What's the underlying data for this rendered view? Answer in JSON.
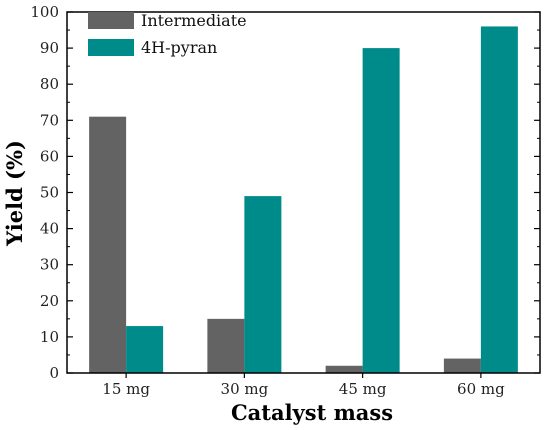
{
  "chart_data": {
    "type": "bar",
    "title": "",
    "xlabel": "Catalyst mass",
    "ylabel": "Yield (%)",
    "ylim": [
      0,
      100
    ],
    "yticks": [
      0,
      10,
      20,
      30,
      40,
      50,
      60,
      70,
      80,
      90,
      100
    ],
    "categories": [
      "15 mg",
      "30 mg",
      "45 mg",
      "60 mg"
    ],
    "series": [
      {
        "name": "Intermediate",
        "color": "#636363",
        "values": [
          71,
          15,
          2,
          4
        ]
      },
      {
        "name": "4H-pyran",
        "color": "#008b8b",
        "values": [
          13,
          49,
          90,
          96
        ]
      }
    ],
    "legend_position": "top-left",
    "grid": false
  }
}
